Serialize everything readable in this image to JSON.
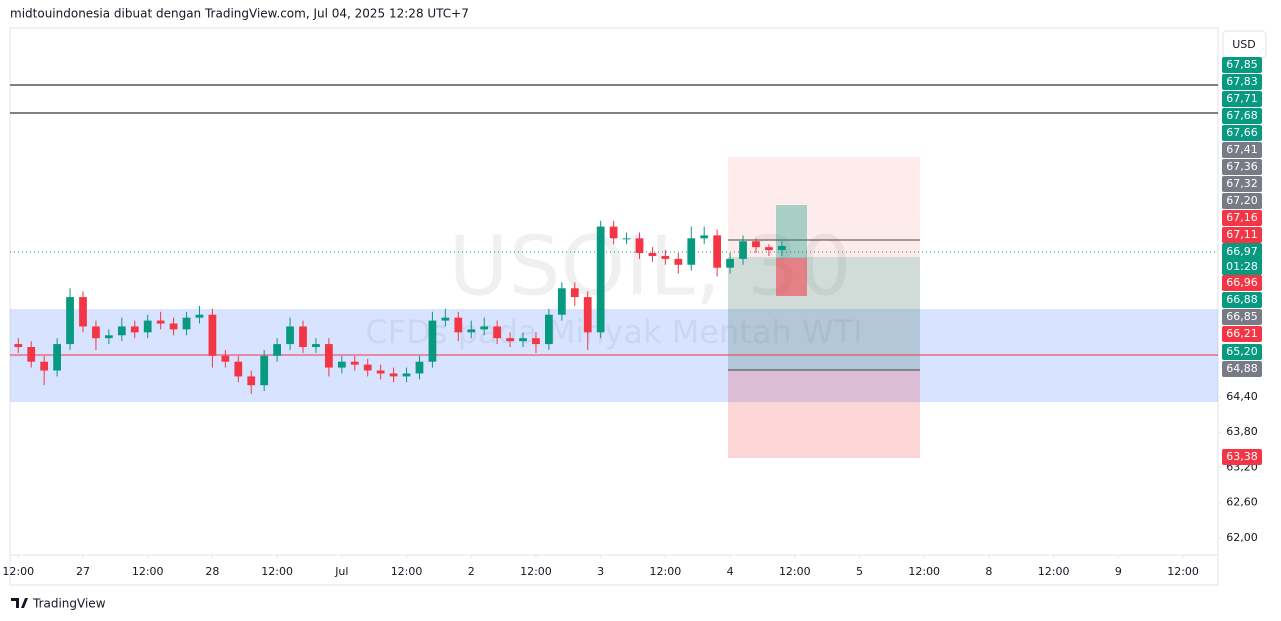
{
  "header": "midtouindonesia dibuat dengan TradingView.com, Jul 04, 2025 12:28 UTC+7",
  "currency_button": "USD",
  "footer": "TradingView",
  "chart_data": {
    "type": "candlestick",
    "title": "USOIL, 30",
    "subtitle": "CFDs pada Minyak Mentah WTI",
    "up_color": "#089981",
    "down_color": "#f23645",
    "xlim": [
      0.436,
      9.77
    ],
    "xticks": [
      {
        "value": 0.5,
        "label": "12:00"
      },
      {
        "value": 1,
        "label": "27"
      },
      {
        "value": 1.5,
        "label": "12:00"
      },
      {
        "value": 2,
        "label": "28"
      },
      {
        "value": 2.5,
        "label": "12:00"
      },
      {
        "value": 3,
        "label": "Jul"
      },
      {
        "value": 3.5,
        "label": "12:00"
      },
      {
        "value": 4,
        "label": "2"
      },
      {
        "value": 4.5,
        "label": "12:00"
      },
      {
        "value": 5,
        "label": "3"
      },
      {
        "value": 5.5,
        "label": "12:00"
      },
      {
        "value": 6,
        "label": "4"
      },
      {
        "value": 6.5,
        "label": "12:00"
      },
      {
        "value": 7,
        "label": "5"
      },
      {
        "value": 7.5,
        "label": "12:00"
      },
      {
        "value": 8,
        "label": "8"
      },
      {
        "value": 8.5,
        "label": "12:00"
      },
      {
        "value": 9,
        "label": "9"
      },
      {
        "value": 9.5,
        "label": "12:00"
      }
    ],
    "ylim": [
      61.71,
      70.68
    ],
    "yticks": [
      {
        "value": 64.4,
        "label": "64,40"
      },
      {
        "value": 63.8,
        "label": "63,80"
      },
      {
        "value": 63.2,
        "label": "63,20"
      },
      {
        "value": 62.6,
        "label": "62,60"
      },
      {
        "value": 62,
        "label": "62,00"
      }
    ],
    "x": [
      0.5,
      0.6,
      0.7,
      0.8,
      0.9,
      1.0,
      1.1,
      1.2,
      1.3,
      1.4,
      1.5,
      1.6,
      1.7,
      1.8,
      1.9,
      2.0,
      2.1,
      2.2,
      2.3,
      2.4,
      2.5,
      2.6,
      2.7,
      2.8,
      2.9,
      3.0,
      3.1,
      3.2,
      3.3,
      3.4,
      3.5,
      3.6,
      3.7,
      3.8,
      3.9,
      4.0,
      4.1,
      4.2,
      4.3,
      4.4,
      4.5,
      4.6,
      4.7,
      4.8,
      4.9,
      5.0,
      5.1,
      5.2,
      5.3,
      5.4,
      5.5,
      5.6,
      5.7,
      5.8,
      5.9,
      6.0,
      6.1,
      6.2,
      6.3,
      6.4
    ],
    "open": [
      65.3,
      65.25,
      65.0,
      64.85,
      65.3,
      66.1,
      65.6,
      65.4,
      65.45,
      65.6,
      65.5,
      65.7,
      65.65,
      65.55,
      65.75,
      65.8,
      65.1,
      65.0,
      64.75,
      64.6,
      65.1,
      65.3,
      65.6,
      65.25,
      65.3,
      64.9,
      65.0,
      64.95,
      64.85,
      64.8,
      64.75,
      64.8,
      65.0,
      65.7,
      65.75,
      65.5,
      65.55,
      65.6,
      65.4,
      65.35,
      65.4,
      65.3,
      65.8,
      66.25,
      66.1,
      65.5,
      67.3,
      67.1,
      67.1,
      66.85,
      66.8,
      66.75,
      66.65,
      67.1,
      67.15,
      66.6,
      66.75,
      67.05,
      66.95,
      66.9
    ],
    "high": [
      65.4,
      65.35,
      65.1,
      65.4,
      66.25,
      66.2,
      65.7,
      65.55,
      65.75,
      65.7,
      65.8,
      65.85,
      65.75,
      65.85,
      65.95,
      65.9,
      65.2,
      65.1,
      64.85,
      65.2,
      65.4,
      65.75,
      65.7,
      65.4,
      65.4,
      65.1,
      65.1,
      65.05,
      64.95,
      64.9,
      64.9,
      65.1,
      65.85,
      65.9,
      65.85,
      65.7,
      65.75,
      65.7,
      65.5,
      65.5,
      65.5,
      65.9,
      66.35,
      66.35,
      66.2,
      67.4,
      67.4,
      67.2,
      67.2,
      66.95,
      66.9,
      66.85,
      67.3,
      67.3,
      67.25,
      66.85,
      67.15,
      67.1,
      67.0,
      67.05
    ],
    "low": [
      65.15,
      64.9,
      64.6,
      64.75,
      65.2,
      65.5,
      65.2,
      65.3,
      65.35,
      65.4,
      65.4,
      65.55,
      65.45,
      65.45,
      65.65,
      64.9,
      64.9,
      64.65,
      64.45,
      64.5,
      65.0,
      65.2,
      65.15,
      65.15,
      64.75,
      64.8,
      64.85,
      64.75,
      64.7,
      64.65,
      64.65,
      64.7,
      64.9,
      65.6,
      65.35,
      65.4,
      65.45,
      65.3,
      65.25,
      65.25,
      65.15,
      65.2,
      65.7,
      65.95,
      65.2,
      65.4,
      67.0,
      67.0,
      66.75,
      66.7,
      66.65,
      66.5,
      66.55,
      67.0,
      66.45,
      66.5,
      66.65,
      66.85,
      66.8,
      66.8
    ],
    "close": [
      65.25,
      65.0,
      64.85,
      65.3,
      66.1,
      65.6,
      65.4,
      65.45,
      65.6,
      65.5,
      65.7,
      65.65,
      65.55,
      65.75,
      65.8,
      65.1,
      65.0,
      64.75,
      64.6,
      65.1,
      65.3,
      65.6,
      65.25,
      65.3,
      64.9,
      65.0,
      64.95,
      64.85,
      64.8,
      64.75,
      64.8,
      65.0,
      65.7,
      65.75,
      65.5,
      65.55,
      65.6,
      65.4,
      65.35,
      65.4,
      65.3,
      65.8,
      66.25,
      66.1,
      65.5,
      67.3,
      67.1,
      67.1,
      66.85,
      66.8,
      66.75,
      66.65,
      67.1,
      67.15,
      66.6,
      66.75,
      67.05,
      66.95,
      66.9,
      66.97
    ],
    "price_badges": [
      {
        "label": "67,85",
        "color": "#089981"
      },
      {
        "label": "67,83",
        "color": "#089981"
      },
      {
        "label": "67,71",
        "color": "#089981"
      },
      {
        "label": "67,68",
        "color": "#089981"
      },
      {
        "label": "67,66",
        "color": "#089981"
      },
      {
        "label": "67,41",
        "color": "#787b86"
      },
      {
        "label": "67,36",
        "color": "#787b86"
      },
      {
        "label": "67,32",
        "color": "#787b86"
      },
      {
        "label": "67,20",
        "color": "#787b86"
      },
      {
        "label": "67,16",
        "color": "#f23645"
      },
      {
        "label": "67,11",
        "color": "#f23645"
      },
      {
        "label": "66,97",
        "sub": "01:28",
        "color": "#089981"
      },
      {
        "label": "66,96",
        "color": "#f23645"
      },
      {
        "label": "66,88",
        "color": "#089981"
      },
      {
        "label": "66,85",
        "color": "#787b86"
      },
      {
        "label": "66,21",
        "color": "#f23645"
      },
      {
        "label": "65,20",
        "color": "#089981"
      },
      {
        "label": "64,88",
        "color": "#787b86"
      },
      {
        "label": "63,38",
        "color": "#f23645"
      }
    ]
  }
}
